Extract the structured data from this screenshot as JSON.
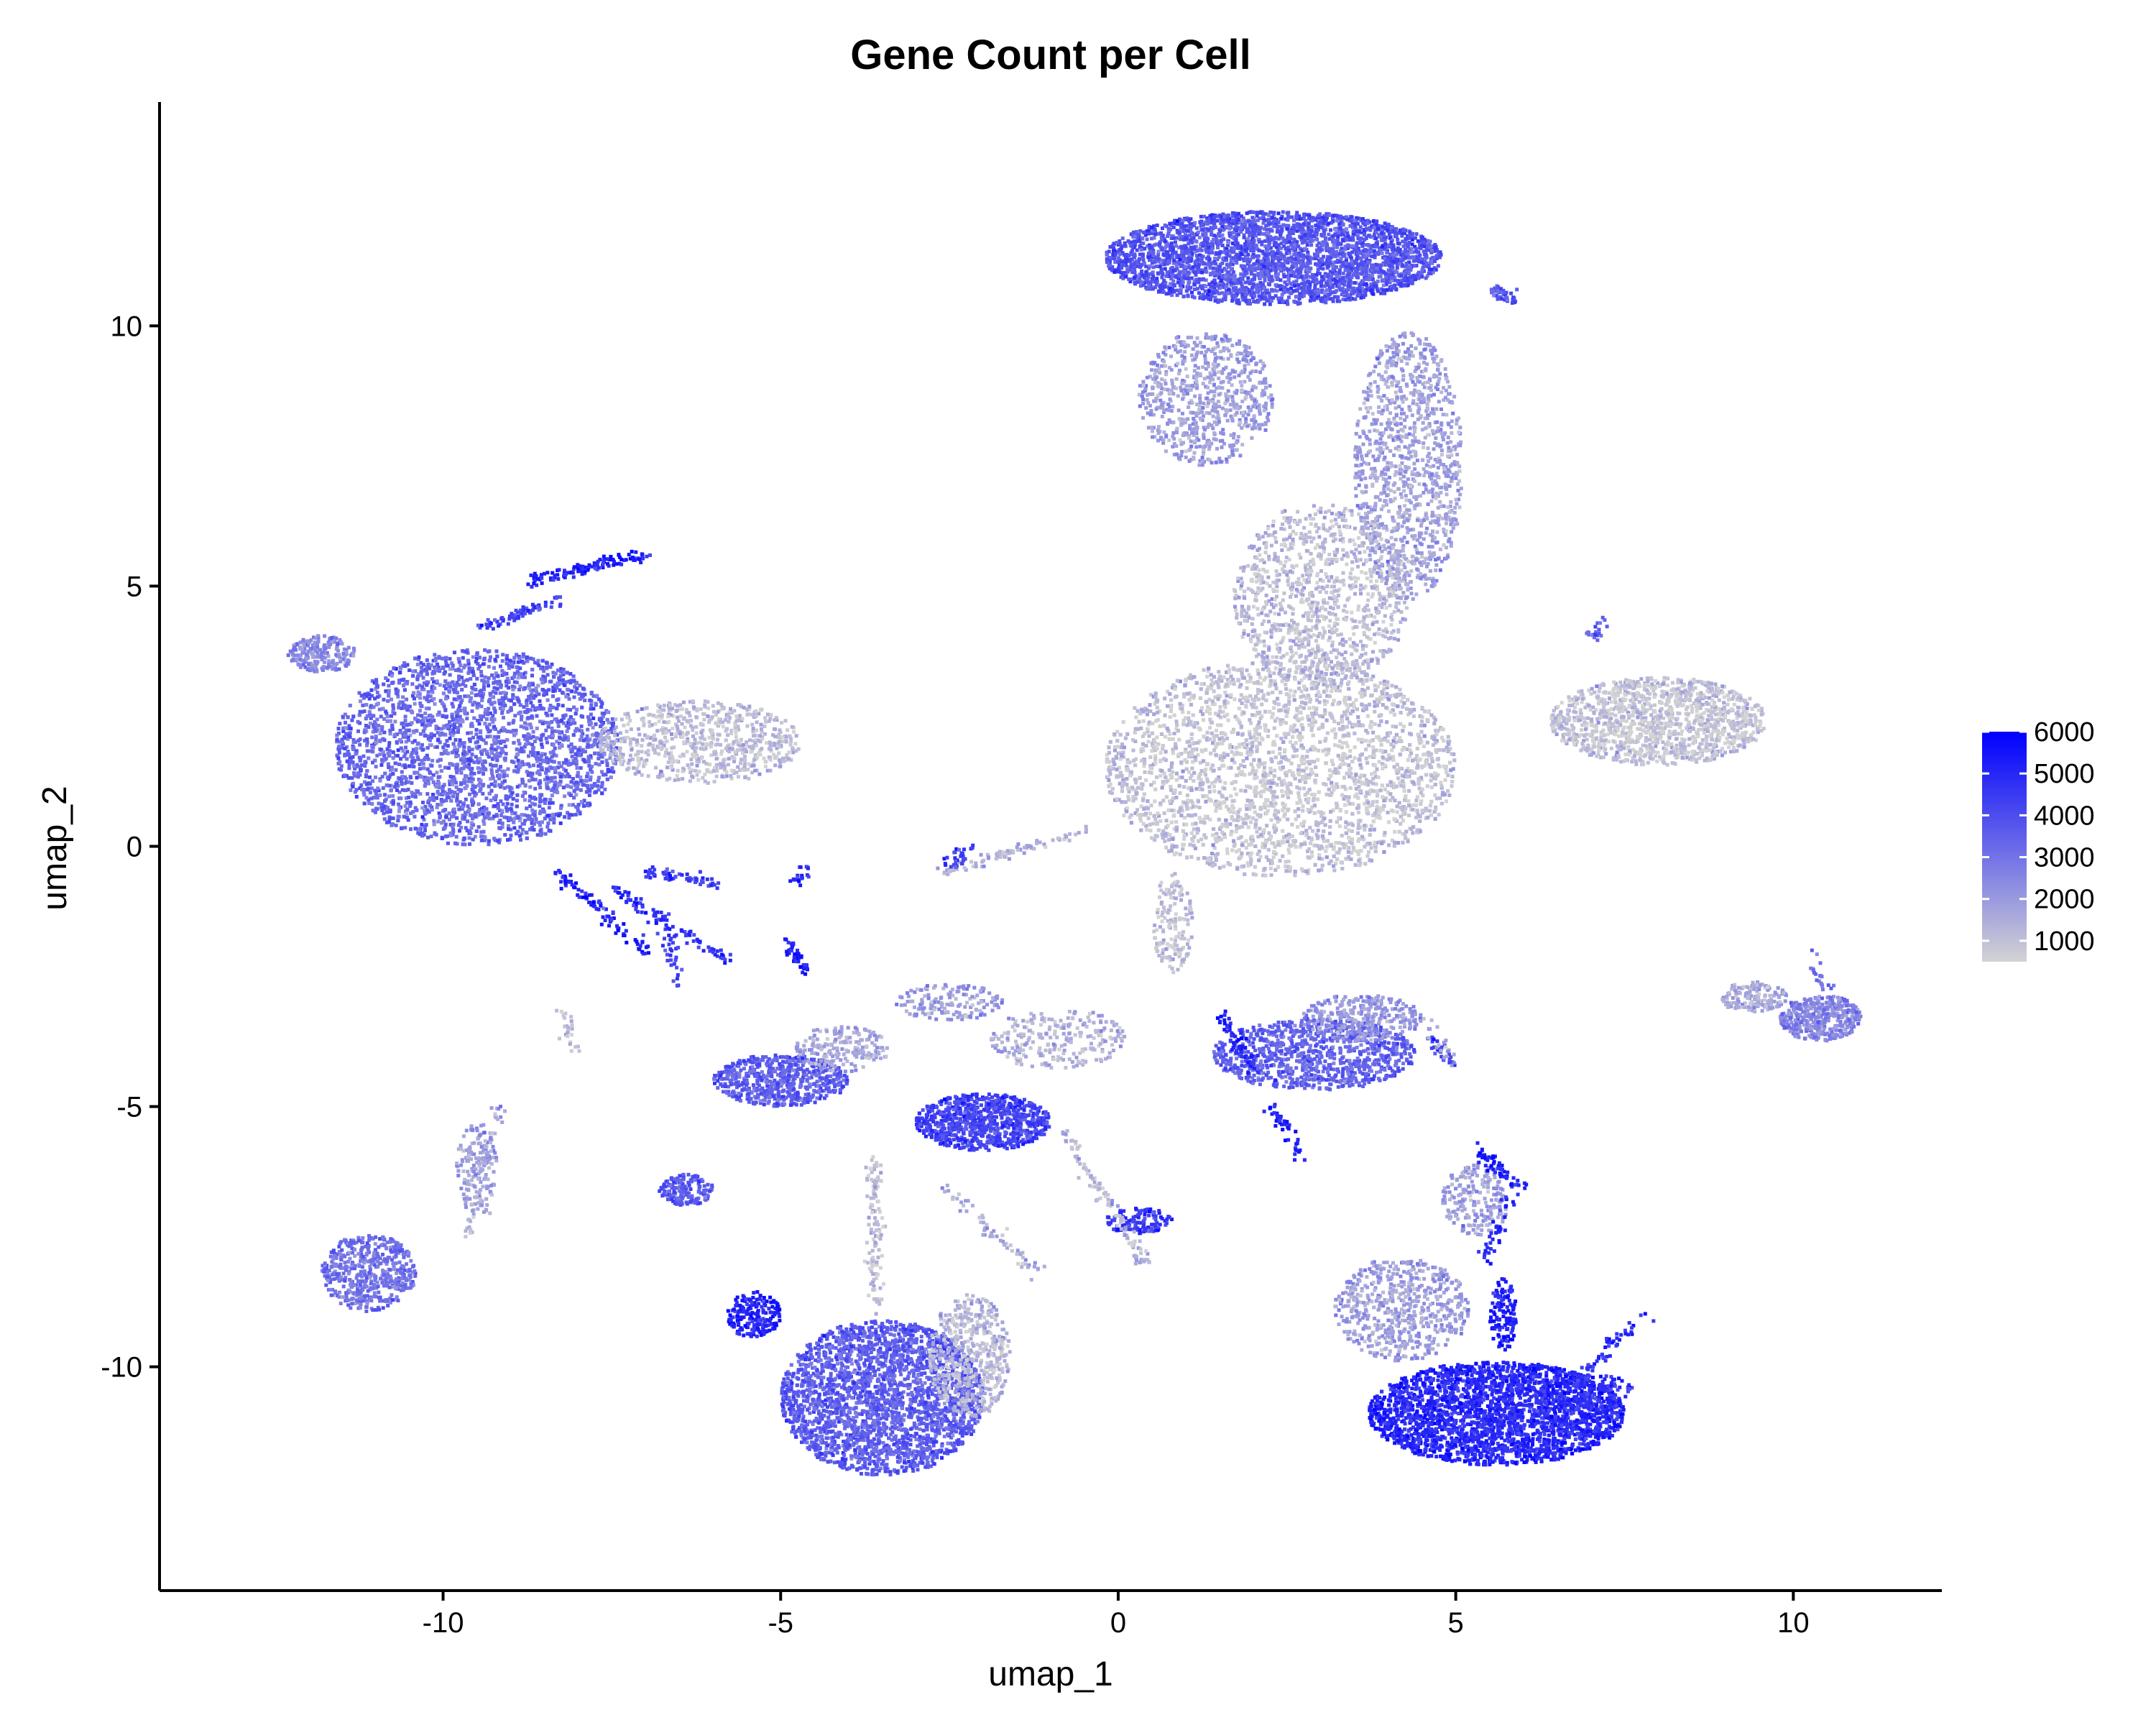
{
  "chart_data": {
    "type": "scatter",
    "title": "Gene Count per Cell",
    "xlabel": "umap_1",
    "ylabel": "umap_2",
    "xlim": [
      -14.2,
      12.2
    ],
    "ylim": [
      -14.3,
      14.3
    ],
    "x_ticks": [
      -10,
      -5,
      0,
      5,
      10
    ],
    "y_ticks": [
      -10,
      -5,
      0,
      5,
      10
    ],
    "grid": false,
    "legend": {
      "placement": "right",
      "type": "colorbar",
      "min": 500,
      "max": 6000,
      "ticks": [
        1000,
        2000,
        3000,
        4000,
        5000,
        6000
      ],
      "low_color": "#d3d3d3",
      "high_color": "#0000ff"
    },
    "clusters": [
      {
        "cx": 2.3,
        "cy": 11.3,
        "rx": 2.5,
        "ry": 0.9,
        "count": 3200,
        "level": 3700
      },
      {
        "cx": 1.3,
        "cy": 8.6,
        "rx": 1.0,
        "ry": 1.3,
        "count": 700,
        "level": 1800
      },
      {
        "cx": 4.3,
        "cy": 7.3,
        "rx": 0.8,
        "ry": 2.6,
        "count": 1100,
        "level": 1700
      },
      {
        "cx": 3.0,
        "cy": 4.8,
        "rx": 1.3,
        "ry": 1.8,
        "count": 1100,
        "level": 1000
      },
      {
        "cx": 2.4,
        "cy": 1.5,
        "rx": 2.6,
        "ry": 2.1,
        "count": 5200,
        "level": 800
      },
      {
        "cx": 8.0,
        "cy": 2.4,
        "rx": 1.6,
        "ry": 0.85,
        "count": 1300,
        "level": 800
      },
      {
        "cx": -9.5,
        "cy": 1.9,
        "rx": 2.1,
        "ry": 1.9,
        "count": 3800,
        "level": 3200
      },
      {
        "cx": -11.8,
        "cy": 3.7,
        "rx": 0.5,
        "ry": 0.35,
        "count": 200,
        "level": 2400
      },
      {
        "cx": -6.2,
        "cy": 2.0,
        "rx": 1.5,
        "ry": 0.8,
        "count": 700,
        "level": 1000
      },
      {
        "cx": 10.4,
        "cy": -3.3,
        "rx": 0.6,
        "ry": 0.45,
        "count": 400,
        "level": 2500
      },
      {
        "cx": 9.4,
        "cy": -2.9,
        "rx": 0.5,
        "ry": 0.3,
        "count": 150,
        "level": 1500
      },
      {
        "cx": -5.0,
        "cy": -4.5,
        "rx": 1.0,
        "ry": 0.5,
        "count": 600,
        "level": 3500
      },
      {
        "cx": -4.1,
        "cy": -3.9,
        "rx": 0.7,
        "ry": 0.45,
        "count": 200,
        "level": 1600
      },
      {
        "cx": -2.0,
        "cy": -5.3,
        "rx": 1.0,
        "ry": 0.55,
        "count": 800,
        "level": 4200
      },
      {
        "cx": 2.9,
        "cy": -4.0,
        "rx": 1.5,
        "ry": 0.7,
        "count": 900,
        "level": 3400
      },
      {
        "cx": 3.6,
        "cy": -3.3,
        "rx": 0.9,
        "ry": 0.45,
        "count": 300,
        "level": 2000
      },
      {
        "cx": -11.1,
        "cy": -8.2,
        "rx": 0.7,
        "ry": 0.75,
        "count": 500,
        "level": 3000
      },
      {
        "cx": -9.5,
        "cy": -6.2,
        "rx": 0.3,
        "ry": 0.9,
        "count": 150,
        "level": 1800
      },
      {
        "cx": -6.4,
        "cy": -6.6,
        "rx": 0.4,
        "ry": 0.3,
        "count": 150,
        "level": 3600
      },
      {
        "cx": -3.5,
        "cy": -10.6,
        "rx": 1.5,
        "ry": 1.5,
        "count": 3000,
        "level": 3500
      },
      {
        "cx": -2.2,
        "cy": -9.8,
        "rx": 0.6,
        "ry": 1.2,
        "count": 500,
        "level": 1200
      },
      {
        "cx": -5.4,
        "cy": -9.0,
        "rx": 0.4,
        "ry": 0.45,
        "count": 200,
        "level": 5000
      },
      {
        "cx": 0.3,
        "cy": -7.2,
        "rx": 0.5,
        "ry": 0.25,
        "count": 120,
        "level": 4500
      },
      {
        "cx": 4.2,
        "cy": -8.9,
        "rx": 1.0,
        "ry": 1.0,
        "count": 600,
        "level": 1800
      },
      {
        "cx": 5.6,
        "cy": -10.9,
        "rx": 1.9,
        "ry": 1.0,
        "count": 3400,
        "level": 4900
      },
      {
        "cx": 5.3,
        "cy": -6.8,
        "rx": 0.5,
        "ry": 0.7,
        "count": 200,
        "level": 1800
      },
      {
        "cx": 5.7,
        "cy": -9.0,
        "rx": 0.2,
        "ry": 0.7,
        "count": 120,
        "level": 5200
      },
      {
        "cx": 7.0,
        "cy": -10.5,
        "rx": 0.7,
        "ry": 0.35,
        "count": 120,
        "level": 4700
      },
      {
        "cx": -0.9,
        "cy": -3.7,
        "rx": 1.0,
        "ry": 0.6,
        "count": 250,
        "level": 1300
      },
      {
        "cx": 0.8,
        "cy": -1.5,
        "rx": 0.3,
        "ry": 1.0,
        "count": 150,
        "level": 900
      },
      {
        "cx": -2.5,
        "cy": -3.0,
        "rx": 0.8,
        "ry": 0.35,
        "count": 150,
        "level": 1800
      }
    ],
    "strands": [
      {
        "x0": -8.7,
        "y0": 5.1,
        "x1": -7.0,
        "y1": 5.6,
        "count": 120,
        "level": 5200
      },
      {
        "x0": -9.5,
        "y0": 4.2,
        "x1": -8.2,
        "y1": 4.8,
        "count": 70,
        "level": 4200
      },
      {
        "x0": -8.3,
        "y0": -0.5,
        "x1": -7.0,
        "y1": -2.0,
        "count": 90,
        "level": 5200
      },
      {
        "x0": -7.5,
        "y0": -0.8,
        "x1": -5.8,
        "y1": -2.2,
        "count": 90,
        "level": 4800
      },
      {
        "x0": -7.0,
        "y0": -0.5,
        "x1": -6.0,
        "y1": -0.7,
        "count": 60,
        "level": 4400
      },
      {
        "x0": -6.7,
        "y0": -1.5,
        "x1": -6.5,
        "y1": -2.7,
        "count": 30,
        "level": 4200
      },
      {
        "x0": -4.9,
        "y0": -1.8,
        "x1": -4.6,
        "y1": -2.4,
        "count": 40,
        "level": 5200
      },
      {
        "x0": -4.8,
        "y0": -0.7,
        "x1": -4.6,
        "y1": -0.4,
        "count": 20,
        "level": 4800
      },
      {
        "x0": -2.6,
        "y0": -0.5,
        "x1": -0.5,
        "y1": 0.3,
        "count": 90,
        "level": 1400
      },
      {
        "x0": -2.5,
        "y0": -0.4,
        "x1": -2.2,
        "y1": 0.0,
        "count": 30,
        "level": 4500
      },
      {
        "x0": -9.2,
        "y0": -5.0,
        "x1": -9.6,
        "y1": -7.5,
        "count": 60,
        "level": 1600
      },
      {
        "x0": -8.2,
        "y0": -3.2,
        "x1": -8.1,
        "y1": -3.9,
        "count": 25,
        "level": 1200
      },
      {
        "x0": 5.3,
        "y0": -5.8,
        "x1": 6.0,
        "y1": -6.6,
        "count": 60,
        "level": 5200
      },
      {
        "x0": 5.8,
        "y0": -6.8,
        "x1": 5.4,
        "y1": -8.0,
        "count": 40,
        "level": 5000
      },
      {
        "x0": 6.2,
        "y0": -11.0,
        "x1": 7.8,
        "y1": -9.0,
        "count": 70,
        "level": 4800
      },
      {
        "x0": 4.6,
        "y0": -3.7,
        "x1": 5.0,
        "y1": -4.2,
        "count": 25,
        "level": 4400
      },
      {
        "x0": 2.3,
        "y0": -5.0,
        "x1": 2.7,
        "y1": -6.0,
        "count": 40,
        "level": 5200
      },
      {
        "x0": 1.5,
        "y0": -3.2,
        "x1": 2.0,
        "y1": -4.3,
        "count": 60,
        "level": 5200
      },
      {
        "x0": 7.0,
        "y0": 4.0,
        "x1": 7.2,
        "y1": 4.4,
        "count": 20,
        "level": 3500
      },
      {
        "x0": 5.5,
        "y0": 10.7,
        "x1": 5.9,
        "y1": 10.5,
        "count": 40,
        "level": 3800
      },
      {
        "x0": -3.6,
        "y0": -6.0,
        "x1": -3.6,
        "y1": -9.0,
        "count": 120,
        "level": 1000
      },
      {
        "x0": -0.8,
        "y0": -5.5,
        "x1": 0.4,
        "y1": -8.0,
        "count": 100,
        "level": 1200
      },
      {
        "x0": 10.3,
        "y0": -2.1,
        "x1": 10.5,
        "y1": -2.8,
        "count": 20,
        "level": 3000
      },
      {
        "x0": 4.5,
        "y0": -3.3,
        "x1": 5.0,
        "y1": -4.2,
        "count": 20,
        "level": 1500
      },
      {
        "x0": -2.6,
        "y0": -6.5,
        "x1": -1.2,
        "y1": -8.2,
        "count": 60,
        "level": 1500
      }
    ]
  }
}
